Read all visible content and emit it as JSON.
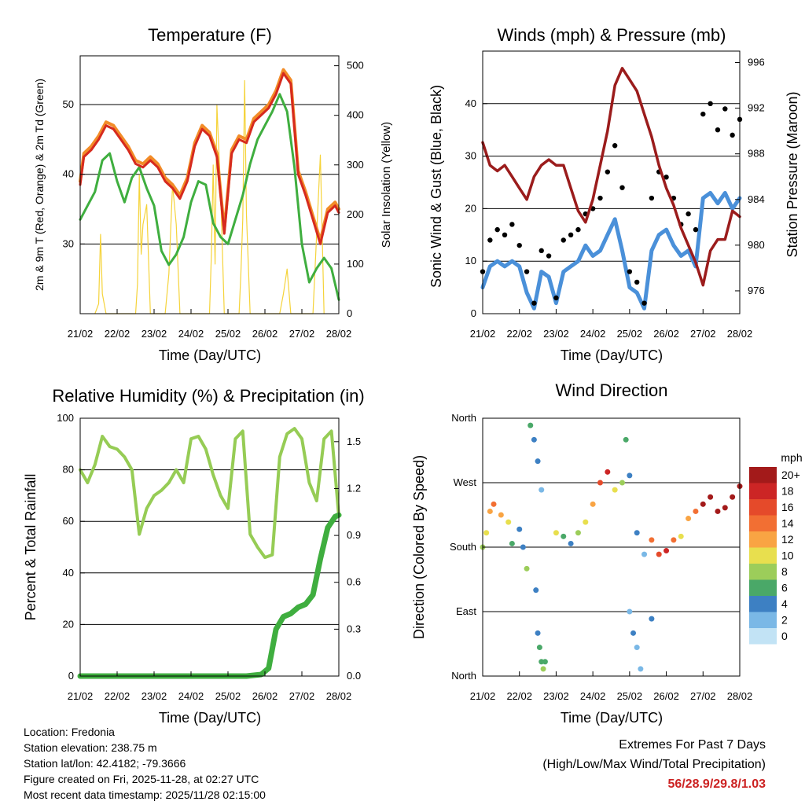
{
  "colors": {
    "temp_2m": "#d62a1e",
    "temp_9m": "#f28c28",
    "dewpoint": "#3fae3f",
    "insolation": "#f5d33a",
    "wind": "#4a90d9",
    "gust": "#000000",
    "pressure": "#9b1c1c",
    "rh": "#96cc55",
    "precip": "#3fae3f",
    "grid": "#000000",
    "extremes_text": "#cc2222"
  },
  "xlabel": "Time (Day/UTC)",
  "day_ticks": [
    "21/02",
    "22/02",
    "23/02",
    "24/02",
    "25/02",
    "26/02",
    "27/02",
    "28/02"
  ],
  "panels": {
    "temperature": {
      "title": "Temperature (F)",
      "ylabel_left": "2m & 9m T (Red, Orange) & 2m Td (Green)",
      "ylabel_right": "Solar Insolation (Yellow)"
    },
    "winds": {
      "title": "Winds (mph) & Pressure (mb)",
      "ylabel_left": "Sonic Wind & Gust (Blue, Black)",
      "ylabel_right": "Station Pressure (Maroon)"
    },
    "humidity": {
      "title": "Relative Humidity (%) & Precipitation (in)",
      "ylabel_left": "Percent & Total Rainfall"
    },
    "direction": {
      "title": "Wind Direction",
      "ylabel_left": "Direction (Colored By Speed)",
      "legend_title": "mph"
    }
  },
  "chart_data": [
    {
      "type": "line",
      "title": "Temperature (F)",
      "xlabel": "Time (Day/UTC)",
      "ylabel": "2m & 9m T (Red, Orange) & 2m Td (Green)",
      "y2label": "Solar Insolation (Yellow)",
      "xlim": [
        0,
        7
      ],
      "ylim": [
        20,
        57
      ],
      "y_ticks": [
        30,
        40,
        50
      ],
      "y2lim": [
        0,
        520
      ],
      "y2_ticks": [
        0,
        100,
        200,
        300,
        400,
        500
      ],
      "series": [
        {
          "name": "2m T",
          "axis": "left",
          "x": [
            0,
            0.1,
            0.3,
            0.5,
            0.7,
            0.9,
            1.1,
            1.3,
            1.5,
            1.7,
            1.9,
            2.1,
            2.3,
            2.5,
            2.7,
            2.9,
            3.1,
            3.3,
            3.5,
            3.7,
            3.9,
            4.1,
            4.3,
            4.5,
            4.7,
            4.9,
            5.1,
            5.3,
            5.5,
            5.7,
            5.9,
            6.1,
            6.3,
            6.5,
            6.7,
            6.9,
            7.0
          ],
          "values": [
            38.5,
            42.5,
            43.5,
            45,
            47,
            46.5,
            45,
            43.5,
            41.5,
            41,
            42,
            41,
            39,
            38,
            36.5,
            39,
            44,
            46.5,
            45.5,
            42.5,
            31.5,
            43,
            45,
            44.5,
            47.5,
            48.5,
            49.5,
            51.5,
            54.5,
            53,
            40,
            37,
            33.5,
            30,
            34.5,
            35.5,
            34.5
          ]
        },
        {
          "name": "9m T",
          "axis": "left",
          "x": [
            0,
            0.1,
            0.3,
            0.5,
            0.7,
            0.9,
            1.1,
            1.3,
            1.5,
            1.7,
            1.9,
            2.1,
            2.3,
            2.5,
            2.7,
            2.9,
            3.1,
            3.3,
            3.5,
            3.7,
            3.9,
            4.1,
            4.3,
            4.5,
            4.7,
            4.9,
            5.1,
            5.3,
            5.5,
            5.7,
            5.9,
            6.1,
            6.3,
            6.5,
            6.7,
            6.9,
            7.0
          ],
          "values": [
            39,
            43,
            44,
            45.5,
            47.5,
            47,
            45.5,
            44,
            42,
            41.5,
            42.5,
            41.5,
            39.5,
            38.5,
            37,
            39.5,
            44.5,
            47,
            46,
            43,
            32,
            43.5,
            45.5,
            45,
            48,
            49,
            50,
            52,
            55,
            53.5,
            40.5,
            37.5,
            34,
            30.5,
            35,
            36,
            35
          ]
        },
        {
          "name": "2m Td",
          "axis": "left",
          "x": [
            0,
            0.2,
            0.4,
            0.6,
            0.8,
            1.0,
            1.2,
            1.4,
            1.6,
            1.8,
            2.0,
            2.2,
            2.4,
            2.6,
            2.8,
            3.0,
            3.2,
            3.4,
            3.6,
            3.8,
            4.0,
            4.2,
            4.4,
            4.6,
            4.8,
            5.0,
            5.2,
            5.4,
            5.6,
            5.8,
            6.0,
            6.2,
            6.4,
            6.6,
            6.8,
            7.0
          ],
          "values": [
            33.5,
            35.5,
            37.5,
            42,
            43,
            39,
            36,
            39.5,
            41,
            38,
            35.5,
            29,
            27,
            28.5,
            31,
            36,
            39,
            38.5,
            33,
            31,
            30,
            33.5,
            37,
            41.5,
            45,
            47,
            49,
            51.5,
            49,
            41,
            30,
            24.5,
            26.5,
            28,
            26.5,
            22
          ]
        },
        {
          "name": "Solar Insolation",
          "axis": "right",
          "x": [
            0.4,
            0.5,
            0.55,
            0.6,
            0.7,
            1.5,
            1.55,
            1.6,
            1.65,
            1.7,
            1.8,
            1.9,
            2.3,
            2.4,
            2.5,
            2.6,
            2.7,
            3.5,
            3.55,
            3.6,
            3.65,
            3.7,
            3.8,
            3.9,
            4.3,
            4.35,
            4.4,
            4.45,
            4.5,
            4.6,
            5.4,
            5.5,
            5.6,
            5.7,
            6.3,
            6.4,
            6.5,
            6.6
          ],
          "values": [
            0,
            20,
            160,
            40,
            0,
            0,
            60,
            280,
            120,
            180,
            220,
            0,
            0,
            80,
            260,
            180,
            0,
            0,
            120,
            300,
            100,
            420,
            250,
            0,
            0,
            80,
            190,
            470,
            200,
            0,
            0,
            40,
            90,
            0,
            0,
            160,
            320,
            0
          ]
        }
      ]
    },
    {
      "type": "scatter",
      "title": "Winds (mph) & Pressure (mb)",
      "xlabel": "Time (Day/UTC)",
      "ylabel": "Sonic Wind & Gust (Blue, Black)",
      "y2label": "Station Pressure (Maroon)",
      "xlim": [
        0,
        7
      ],
      "ylim": [
        0,
        50
      ],
      "y_ticks": [
        0,
        10,
        20,
        30,
        40
      ],
      "y2lim": [
        974,
        997
      ],
      "y2_ticks": [
        976,
        980,
        984,
        988,
        992,
        996
      ],
      "series": [
        {
          "name": "Sonic Wind",
          "axis": "left",
          "x": [
            0,
            0.2,
            0.4,
            0.6,
            0.8,
            1.0,
            1.2,
            1.4,
            1.6,
            1.8,
            2.0,
            2.2,
            2.4,
            2.6,
            2.8,
            3.0,
            3.2,
            3.4,
            3.6,
            3.8,
            4.0,
            4.2,
            4.4,
            4.6,
            4.8,
            5.0,
            5.2,
            5.4,
            5.6,
            5.8,
            6.0,
            6.2,
            6.4,
            6.6,
            6.8,
            7.0
          ],
          "values": [
            5,
            9,
            10,
            9,
            10,
            9,
            4,
            1,
            8,
            7,
            2,
            8,
            9,
            10,
            13,
            11,
            12,
            15,
            18,
            12,
            5,
            4,
            1,
            12,
            15,
            16,
            13,
            11,
            12,
            9,
            22,
            23,
            21,
            23,
            20,
            22
          ]
        },
        {
          "name": "Gust",
          "axis": "left",
          "x": [
            0,
            0.2,
            0.4,
            0.6,
            0.8,
            1.0,
            1.2,
            1.4,
            1.6,
            1.8,
            2.0,
            2.2,
            2.4,
            2.6,
            2.8,
            3.0,
            3.2,
            3.4,
            3.6,
            3.8,
            4.0,
            4.2,
            4.4,
            4.6,
            4.8,
            5.0,
            5.2,
            5.4,
            5.6,
            5.8,
            6.0,
            6.2,
            6.4,
            6.6,
            6.8,
            7.0
          ],
          "values": [
            8,
            14,
            16,
            15,
            17,
            13,
            8,
            2,
            12,
            11,
            3,
            14,
            15,
            16,
            19,
            20,
            22,
            27,
            32,
            24,
            8,
            6,
            2,
            22,
            27,
            26,
            22,
            17,
            19,
            16,
            38,
            40,
            35,
            39,
            34,
            37
          ]
        },
        {
          "name": "Station Pressure",
          "axis": "right",
          "x": [
            0,
            0.2,
            0.4,
            0.6,
            0.8,
            1.0,
            1.2,
            1.4,
            1.6,
            1.8,
            2.0,
            2.2,
            2.4,
            2.6,
            2.8,
            3.0,
            3.2,
            3.4,
            3.6,
            3.8,
            4.0,
            4.2,
            4.4,
            4.6,
            4.8,
            5.0,
            5.2,
            5.4,
            5.6,
            5.8,
            6.0,
            6.2,
            6.4,
            6.6,
            6.8,
            7.0
          ],
          "values": [
            989,
            987,
            986.5,
            987,
            986,
            985,
            984,
            986,
            987,
            987.5,
            987,
            987,
            985,
            983,
            982,
            984,
            987,
            990,
            994,
            995.5,
            994.5,
            993.5,
            991.5,
            989.5,
            987,
            985,
            983.5,
            981.5,
            980,
            978.5,
            976.5,
            979.5,
            980.5,
            980.5,
            983,
            982.5
          ]
        }
      ]
    },
    {
      "type": "line",
      "title": "Relative Humidity (%) & Precipitation (in)",
      "xlabel": "Time (Day/UTC)",
      "ylabel": "Percent & Total Rainfall",
      "xlim": [
        0,
        7
      ],
      "ylim": [
        0,
        100
      ],
      "y_ticks": [
        0,
        20,
        40,
        60,
        80,
        100
      ],
      "y2lim": [
        0,
        1.65
      ],
      "y2_ticks": [
        0.0,
        0.3,
        0.6,
        0.9,
        1.2,
        1.5
      ],
      "series": [
        {
          "name": "Relative Humidity",
          "axis": "left",
          "x": [
            0,
            0.2,
            0.4,
            0.6,
            0.8,
            1.0,
            1.2,
            1.4,
            1.6,
            1.8,
            2.0,
            2.2,
            2.4,
            2.6,
            2.8,
            3.0,
            3.2,
            3.4,
            3.6,
            3.8,
            4.0,
            4.2,
            4.4,
            4.6,
            4.8,
            5.0,
            5.2,
            5.4,
            5.6,
            5.8,
            6.0,
            6.2,
            6.4,
            6.6,
            6.8,
            7.0
          ],
          "values": [
            80,
            75,
            82,
            93,
            89,
            88,
            85,
            80,
            55,
            65,
            70,
            72,
            75,
            80,
            75,
            92,
            93,
            88,
            78,
            70,
            65,
            92,
            95,
            55,
            50,
            46,
            47,
            85,
            94,
            96,
            92,
            75,
            68,
            92,
            95,
            62
          ]
        },
        {
          "name": "Total Precipitation",
          "axis": "right",
          "x": [
            0,
            0.5,
            1.0,
            1.5,
            2.0,
            2.5,
            3.0,
            3.5,
            4.0,
            4.5,
            4.9,
            5.1,
            5.3,
            5.5,
            5.7,
            5.9,
            6.1,
            6.3,
            6.5,
            6.7,
            6.9,
            7.0
          ],
          "values": [
            0,
            0,
            0,
            0,
            0,
            0,
            0,
            0,
            0,
            0,
            0.01,
            0.05,
            0.3,
            0.38,
            0.4,
            0.44,
            0.46,
            0.52,
            0.75,
            0.95,
            1.02,
            1.03
          ]
        }
      ]
    },
    {
      "type": "scatter",
      "title": "Wind Direction",
      "xlabel": "Time (Day/UTC)",
      "ylabel": "Direction (Colored By Speed)",
      "xlim": [
        0,
        7
      ],
      "ylim": [
        0,
        360
      ],
      "y_ticks": [
        0,
        90,
        180,
        270,
        360
      ],
      "y_tick_labels": [
        "North",
        "East",
        "South",
        "West",
        "North"
      ],
      "colorbar": {
        "title": "mph",
        "labels": [
          "20+",
          "18",
          "16",
          "14",
          "12",
          "10",
          "8",
          "6",
          "4",
          "2",
          "0"
        ],
        "colors": [
          "#a31a1a",
          "#cc2525",
          "#e54a2a",
          "#f26f33",
          "#f9a443",
          "#e8df4e",
          "#9ccd5a",
          "#4aa868",
          "#3d80c3",
          "#7ab8e6",
          "#c2e3f5"
        ]
      },
      "series": [
        {
          "name": "Direction",
          "x": [
            0,
            0.1,
            0.2,
            0.3,
            0.5,
            0.7,
            0.8,
            1.0,
            1.1,
            1.2,
            1.3,
            1.4,
            1.5,
            1.6,
            1.7,
            2.0,
            2.2,
            2.4,
            2.6,
            2.8,
            3.0,
            3.2,
            3.4,
            3.6,
            3.8,
            3.9,
            4.0,
            4.2,
            4.4,
            4.6,
            4.8,
            5.0,
            5.2,
            5.4,
            5.6,
            5.8,
            6.0,
            6.2,
            6.4,
            6.6,
            6.8,
            7.0
          ],
          "values": [
            180,
            200,
            230,
            240,
            225,
            215,
            185,
            205,
            180,
            150,
            350,
            330,
            300,
            260,
            20,
            200,
            195,
            185,
            200,
            215,
            240,
            270,
            285,
            260,
            270,
            330,
            280,
            200,
            170,
            190,
            170,
            175,
            190,
            195,
            220,
            230,
            240,
            250,
            230,
            235,
            250,
            265
          ],
          "speeds": [
            8,
            10,
            12,
            13,
            11,
            9,
            6,
            4,
            3,
            8,
            6,
            4,
            3,
            2,
            6,
            9,
            5,
            4,
            8,
            10,
            12,
            16,
            18,
            10,
            8,
            6,
            4,
            3,
            2,
            14,
            16,
            18,
            14,
            10,
            12,
            14,
            20,
            20,
            20,
            20,
            20,
            20
          ]
        },
        {
          "name": "Direction (low branch)",
          "x": [
            1.45,
            1.5,
            1.55,
            1.6,
            1.65,
            4.0,
            4.1,
            4.2,
            4.3,
            4.6
          ],
          "values": [
            120,
            60,
            40,
            20,
            10,
            90,
            60,
            40,
            10,
            80
          ],
          "speeds": [
            4,
            3,
            5,
            6,
            8,
            2,
            3,
            2,
            1,
            4
          ]
        }
      ]
    }
  ],
  "footer": {
    "location": "Location: Fredonia",
    "elevation": "Station elevation: 238.75 m",
    "latlon": "Station lat/lon: 42.4182; -79.3666",
    "created": "Figure created on Fri, 2025-11-28, at 02:27 UTC",
    "timestamp": "Most recent data timestamp: 2025/11/28 02:15:00",
    "extremes_title": "Extremes For Past 7 Days",
    "extremes_subtitle": "(High/Low/Max Wind/Total Precipitation)",
    "extremes_values": "56/28.9/29.8/1.03"
  }
}
